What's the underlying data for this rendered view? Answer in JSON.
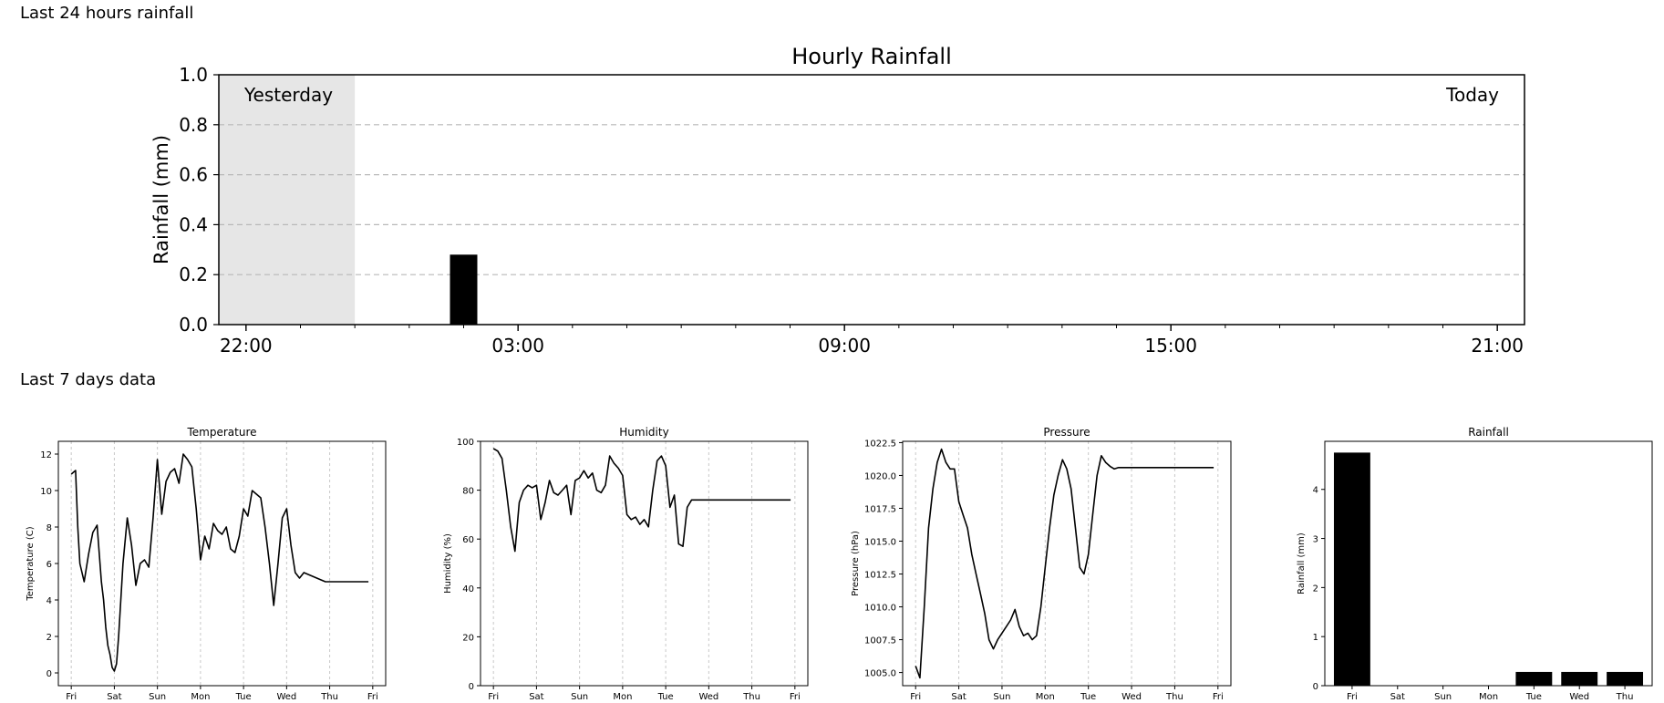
{
  "sections": {
    "last_24h_title": "Last 24 hours rainfall",
    "last_7d_title": "Last 7 days data"
  },
  "chart_data": [
    {
      "type": "bar",
      "title": "Hourly Rainfall",
      "ylabel": "Rainfall (mm)",
      "xlabel": "",
      "ylim": [
        0,
        1.0
      ],
      "yticks": [
        "0.0",
        "0.2",
        "0.4",
        "0.6",
        "0.8",
        "1.0"
      ],
      "xtick_labels": [
        "22:00",
        "03:00",
        "09:00",
        "15:00",
        "21:00"
      ],
      "grid": "horizontal dashed",
      "shaded_region_label": "Yesterday",
      "right_label": "Today",
      "bars": [
        {
          "hour": "02:00",
          "value": 0.28
        }
      ],
      "colors": {
        "bar": "#000000",
        "shade": "#e6e6e6",
        "grid": "#b8b8b8"
      }
    },
    {
      "type": "line",
      "title": "Temperature",
      "ylabel": "Temperature (C)",
      "ylim": [
        -0.7,
        12.7
      ],
      "yticks": [
        "0",
        "2",
        "4",
        "6",
        "8",
        "10",
        "12"
      ],
      "categories": [
        "Fri",
        "Sat",
        "Sun",
        "Mon",
        "Tue",
        "Wed",
        "Thu",
        "Fri"
      ],
      "x": [
        0.0,
        0.05,
        0.1,
        0.15,
        0.2,
        0.3,
        0.4,
        0.5,
        0.6,
        0.7,
        0.75,
        0.8,
        0.85,
        0.9,
        0.95,
        1.0,
        1.05,
        1.1,
        1.15,
        1.2,
        1.3,
        1.4,
        1.5,
        1.6,
        1.7,
        1.8,
        1.9,
        2.0,
        2.1,
        2.2,
        2.3,
        2.4,
        2.5,
        2.6,
        2.7,
        2.8,
        2.9,
        3.0,
        3.1,
        3.2,
        3.3,
        3.4,
        3.5,
        3.6,
        3.7,
        3.8,
        3.9,
        4.0,
        4.1,
        4.2,
        4.3,
        4.4,
        4.5,
        4.6,
        4.7,
        4.8,
        4.9,
        5.0,
        5.1,
        5.2,
        5.3,
        5.4,
        5.5,
        5.6,
        5.7,
        5.8,
        5.9,
        6.0,
        6.1,
        6.2,
        6.3,
        6.4,
        6.5,
        6.6,
        6.7,
        6.8,
        6.9
      ],
      "series": [
        {
          "values": [
            10.9,
            11.0,
            11.1,
            8.0,
            6.0,
            5.0,
            6.5,
            7.7,
            8.1,
            5.0,
            4.0,
            2.5,
            1.5,
            1.0,
            0.3,
            0.1,
            0.5,
            2.0,
            4.0,
            6.0,
            8.5,
            7.0,
            4.8,
            6.0,
            6.2,
            5.8,
            8.5,
            11.7,
            8.7,
            10.5,
            11.0,
            11.2,
            10.4,
            12.0,
            11.7,
            11.3,
            9.0,
            6.2,
            7.5,
            6.8,
            8.2,
            7.8,
            7.6,
            8.0,
            6.8,
            6.6,
            7.5,
            9.0,
            8.6,
            10.0,
            9.8,
            9.6,
            8.0,
            6.0,
            3.7,
            6.0,
            8.5,
            9.0,
            7.0,
            5.5,
            5.2,
            5.5,
            5.4,
            5.3,
            5.2,
            5.1,
            5.0,
            5.0,
            5.0,
            5.0,
            5.0,
            5.0,
            5.0,
            5.0,
            5.0,
            5.0,
            5.0
          ]
        }
      ]
    },
    {
      "type": "line",
      "title": "Humidity",
      "ylabel": "Humidity (%)",
      "ylim": [
        0,
        100
      ],
      "yticks": [
        "0",
        "20",
        "40",
        "60",
        "80",
        "100"
      ],
      "categories": [
        "Fri",
        "Sat",
        "Sun",
        "Mon",
        "Tue",
        "Wed",
        "Thu",
        "Fri"
      ],
      "x": [
        0.0,
        0.1,
        0.2,
        0.3,
        0.4,
        0.5,
        0.6,
        0.7,
        0.8,
        0.9,
        1.0,
        1.1,
        1.2,
        1.3,
        1.4,
        1.5,
        1.6,
        1.7,
        1.8,
        1.9,
        2.0,
        2.1,
        2.2,
        2.3,
        2.4,
        2.5,
        2.6,
        2.7,
        2.8,
        2.9,
        3.0,
        3.1,
        3.2,
        3.3,
        3.4,
        3.5,
        3.6,
        3.7,
        3.8,
        3.9,
        4.0,
        4.1,
        4.2,
        4.3,
        4.4,
        4.5,
        4.6,
        4.7,
        4.8,
        4.9,
        5.0,
        5.1,
        5.2,
        5.3,
        5.4,
        5.5,
        5.6,
        5.7,
        5.8,
        5.9,
        6.0,
        6.1,
        6.2,
        6.3,
        6.4,
        6.5,
        6.6,
        6.7,
        6.8,
        6.9
      ],
      "series": [
        {
          "values": [
            97,
            96,
            93,
            80,
            65,
            55,
            75,
            80,
            82,
            81,
            82,
            68,
            75,
            84,
            79,
            78,
            80,
            82,
            70,
            84,
            85,
            88,
            85,
            87,
            80,
            79,
            82,
            94,
            91,
            89,
            86,
            70,
            68,
            69,
            66,
            68,
            65,
            80,
            92,
            94,
            90,
            73,
            78,
            58,
            57,
            73,
            76,
            76,
            76,
            76,
            76,
            76,
            76,
            76,
            76,
            76,
            76,
            76,
            76,
            76,
            76,
            76,
            76,
            76,
            76,
            76,
            76,
            76,
            76,
            76
          ]
        }
      ]
    },
    {
      "type": "line",
      "title": "Pressure",
      "ylabel": "Pressure (hPa)",
      "ylim": [
        1004.0,
        1022.6
      ],
      "yticks": [
        "1005.0",
        "1007.5",
        "1010.0",
        "1012.5",
        "1015.0",
        "1017.5",
        "1020.0",
        "1022.5"
      ],
      "categories": [
        "Fri",
        "Sat",
        "Sun",
        "Mon",
        "Tue",
        "Wed",
        "Thu",
        "Fri"
      ],
      "x": [
        0.0,
        0.1,
        0.2,
        0.3,
        0.4,
        0.5,
        0.6,
        0.7,
        0.8,
        0.9,
        1.0,
        1.1,
        1.2,
        1.3,
        1.4,
        1.5,
        1.6,
        1.7,
        1.8,
        1.9,
        2.0,
        2.1,
        2.2,
        2.3,
        2.4,
        2.5,
        2.6,
        2.7,
        2.8,
        2.9,
        3.0,
        3.1,
        3.2,
        3.3,
        3.4,
        3.5,
        3.6,
        3.7,
        3.8,
        3.9,
        4.0,
        4.1,
        4.2,
        4.3,
        4.4,
        4.5,
        4.6,
        4.7,
        4.8,
        4.9,
        5.0,
        5.1,
        5.2,
        5.3,
        5.4,
        5.5,
        5.6,
        5.7,
        5.8,
        5.9,
        6.0,
        6.1,
        6.2,
        6.3,
        6.4,
        6.5,
        6.6,
        6.7,
        6.8,
        6.9
      ],
      "series": [
        {
          "values": [
            1005.5,
            1004.6,
            1010.0,
            1016.0,
            1019.0,
            1021.0,
            1022.0,
            1021.0,
            1020.5,
            1020.5,
            1018.0,
            1017.0,
            1016.0,
            1014.0,
            1012.5,
            1011.0,
            1009.5,
            1007.5,
            1006.8,
            1007.5,
            1008.0,
            1008.5,
            1009.0,
            1009.8,
            1008.5,
            1007.8,
            1008.0,
            1007.5,
            1007.8,
            1010.0,
            1013.0,
            1016.0,
            1018.5,
            1020.0,
            1021.2,
            1020.5,
            1019.0,
            1016.0,
            1013.0,
            1012.5,
            1014.0,
            1017.0,
            1020.0,
            1021.5,
            1021.0,
            1020.7,
            1020.5,
            1020.6,
            1020.6,
            1020.6,
            1020.6,
            1020.6,
            1020.6,
            1020.6,
            1020.6,
            1020.6,
            1020.6,
            1020.6,
            1020.6,
            1020.6,
            1020.6,
            1020.6,
            1020.6,
            1020.6,
            1020.6,
            1020.6,
            1020.6,
            1020.6,
            1020.6,
            1020.6
          ]
        }
      ]
    },
    {
      "type": "bar",
      "title": "Rainfall",
      "ylabel": "Rainfall (mm)",
      "ylim": [
        0,
        4.98
      ],
      "yticks": [
        "0",
        "1",
        "2",
        "3",
        "4"
      ],
      "categories": [
        "Fri",
        "Sat",
        "Sun",
        "Mon",
        "Tue",
        "Wed",
        "Thu"
      ],
      "values": [
        4.75,
        0,
        0,
        0,
        0.28,
        0.28,
        0.28
      ]
    }
  ]
}
